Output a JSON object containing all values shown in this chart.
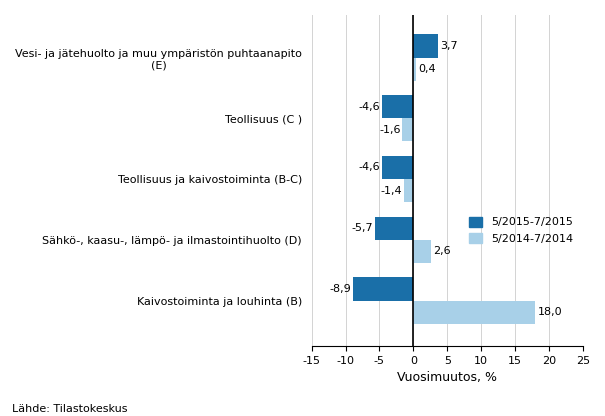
{
  "categories": [
    "Kaivostoiminta ja louhinta (B)",
    "Sähkö-, kaasu-, lämpö- ja ilmastointihuolto (D)",
    "Teollisuus ja kaivostoiminta (B-C)",
    "Teollisuus (C )",
    "Vesi- ja jätehuolto ja muu ympäristön puhtaanapito\n(E)"
  ],
  "values_2015": [
    -8.9,
    -5.7,
    -4.6,
    -4.6,
    3.7
  ],
  "values_2014": [
    18.0,
    2.6,
    -1.4,
    -1.6,
    0.4
  ],
  "labels_2015": [
    "-8,9",
    "-5,7",
    "-4,6",
    "-4,6",
    "3,7"
  ],
  "labels_2014": [
    "18,0",
    "2,6",
    "-1,4",
    "-1,6",
    "0,4"
  ],
  "color_2015": "#1a6fa8",
  "color_2014": "#a8d0e8",
  "xlim": [
    -15,
    25
  ],
  "xticks": [
    -15,
    -10,
    -5,
    0,
    5,
    10,
    15,
    20,
    25
  ],
  "xtick_labels": [
    "-15",
    "-10",
    "-5",
    "0",
    "5",
    "10",
    "15",
    "20",
    "25"
  ],
  "xlabel": "Vuosimuutos, %",
  "legend_2015": "5/2015-7/2015",
  "legend_2014": "5/2014-7/2014",
  "source": "Lähde: Tilastokeskus",
  "bar_height": 0.38
}
